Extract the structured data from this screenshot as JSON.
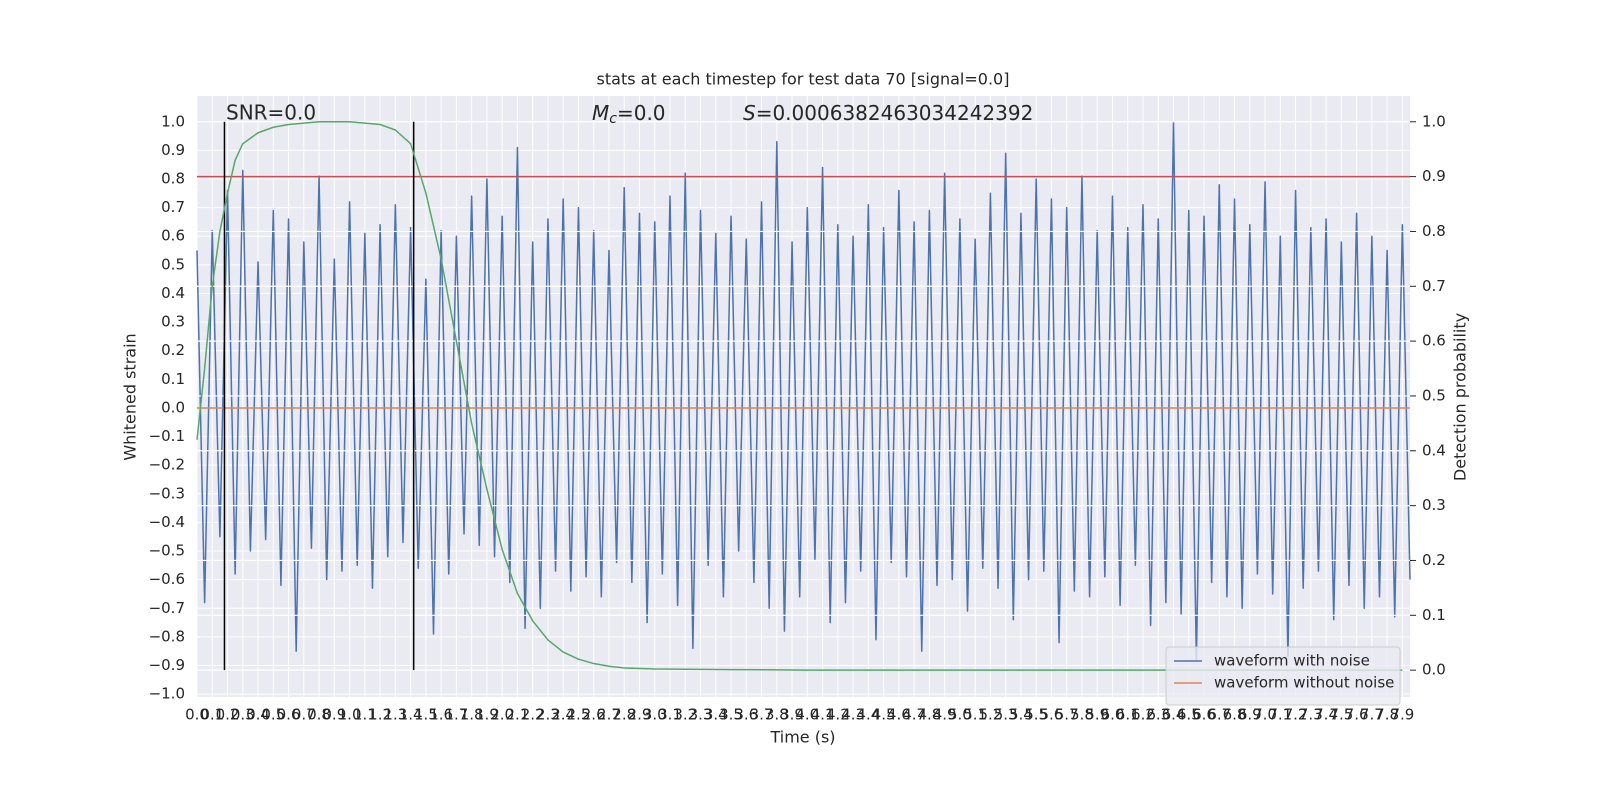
{
  "chart_data": {
    "type": "line",
    "title": "stats at each timestep for test data 70 [signal=0.0]",
    "xlabel": "Time (s)",
    "ylabel": "Whitened strain",
    "y2label": "Detection probability",
    "annotations": [
      {
        "text": "SNR=0.0"
      },
      {
        "symbol": "M",
        "subscript": "c",
        "text": "=0.0"
      },
      {
        "symbol": "S",
        "text": "=0.0006382463034242392"
      }
    ],
    "xlim": [
      0,
      7.95
    ],
    "ylim": [
      -1.01,
      1.09
    ],
    "y2lim": [
      -0.049,
      1.047
    ],
    "grid": true,
    "legend": "lower right",
    "xticks": [
      {
        "value": 0,
        "label": "0.0"
      },
      0.1,
      0.2,
      0.3,
      0.4,
      0.5,
      0.6,
      0.7,
      0.8,
      0.9,
      {
        "value": 1,
        "label": "1.0"
      },
      1.1,
      1.2,
      1.3,
      1.4,
      1.5,
      1.6,
      1.7,
      1.8,
      1.9,
      {
        "value": 2,
        "label": "2.0"
      },
      2.1,
      2.2,
      2.3,
      2.4,
      2.5,
      2.6,
      2.7,
      2.8,
      2.9,
      {
        "value": 3,
        "label": "3.0"
      },
      3.1,
      3.2,
      3.3,
      3.4,
      3.5,
      3.6,
      3.7,
      3.8,
      3.9,
      {
        "value": 4,
        "label": "4.0"
      },
      4.1,
      4.2,
      4.3,
      4.4,
      4.5,
      4.6,
      4.7,
      4.8,
      4.9,
      {
        "value": 5,
        "label": "5.0"
      },
      5.1,
      5.2,
      5.3,
      5.4,
      5.5,
      5.6,
      5.7,
      5.8,
      5.9,
      {
        "value": 6,
        "label": "6.0"
      },
      6.1,
      6.2,
      6.3,
      6.4,
      6.5,
      6.6,
      6.7,
      6.8,
      6.9,
      {
        "value": 7,
        "label": "7.0"
      },
      7.1,
      7.2,
      7.3,
      7.4,
      7.5,
      7.6,
      7.7,
      7.8,
      7.9
    ],
    "yticks": [
      {
        "value": -1,
        "label": "−1.0"
      },
      {
        "value": -0.9,
        "label": "−0.9"
      },
      {
        "value": -0.8,
        "label": "−0.8"
      },
      {
        "value": -0.7,
        "label": "−0.7"
      },
      {
        "value": -0.6,
        "label": "−0.6"
      },
      {
        "value": -0.5,
        "label": "−0.5"
      },
      {
        "value": -0.4,
        "label": "−0.4"
      },
      {
        "value": -0.3,
        "label": "−0.3"
      },
      {
        "value": -0.2,
        "label": "−0.2"
      },
      {
        "value": -0.1,
        "label": "−0.1"
      },
      {
        "value": 0,
        "label": "0.0"
      },
      0.1,
      0.2,
      0.3,
      0.4,
      0.5,
      0.6,
      0.7,
      0.8,
      0.9,
      {
        "value": 1,
        "label": "1.0"
      }
    ],
    "y2ticks": [
      {
        "value": 0,
        "label": "0.0"
      },
      0.1,
      0.2,
      0.3,
      0.4,
      0.5,
      0.6,
      0.7,
      0.8,
      0.9,
      {
        "value": 1,
        "label": "1.0"
      }
    ],
    "series": [
      {
        "name": "waveform with noise",
        "color": "#4c72b0",
        "x": [
          0.0,
          0.05,
          0.1,
          0.15,
          0.2,
          0.25,
          0.3,
          0.35,
          0.4,
          0.45,
          0.5,
          0.55,
          0.6,
          0.65,
          0.7,
          0.75,
          0.8,
          0.85,
          0.9,
          0.95,
          1.0,
          1.05,
          1.1,
          1.15,
          1.2,
          1.25,
          1.3,
          1.35,
          1.4,
          1.45,
          1.5,
          1.55,
          1.6,
          1.65,
          1.7,
          1.75,
          1.8,
          1.85,
          1.9,
          1.95,
          2.0,
          2.05,
          2.1,
          2.15,
          2.2,
          2.25,
          2.3,
          2.35,
          2.4,
          2.45,
          2.5,
          2.55,
          2.6,
          2.65,
          2.7,
          2.75,
          2.8,
          2.85,
          2.9,
          2.95,
          3.0,
          3.05,
          3.1,
          3.15,
          3.2,
          3.25,
          3.3,
          3.35,
          3.4,
          3.45,
          3.5,
          3.55,
          3.6,
          3.65,
          3.7,
          3.75,
          3.8,
          3.85,
          3.9,
          3.95,
          4.0,
          4.05,
          4.1,
          4.15,
          4.2,
          4.25,
          4.3,
          4.35,
          4.4,
          4.45,
          4.5,
          4.55,
          4.6,
          4.65,
          4.7,
          4.75,
          4.8,
          4.85,
          4.9,
          4.95,
          5.0,
          5.05,
          5.1,
          5.15,
          5.2,
          5.25,
          5.3,
          5.35,
          5.4,
          5.45,
          5.5,
          5.55,
          5.6,
          5.65,
          5.7,
          5.75,
          5.8,
          5.85,
          5.9,
          5.95,
          6.0,
          6.05,
          6.1,
          6.15,
          6.2,
          6.25,
          6.3,
          6.35,
          6.4,
          6.45,
          6.5,
          6.55,
          6.6,
          6.65,
          6.7,
          6.75,
          6.8,
          6.85,
          6.9,
          6.95,
          7.0,
          7.05,
          7.1,
          7.15,
          7.2,
          7.25,
          7.3,
          7.35,
          7.4,
          7.45,
          7.5,
          7.55,
          7.6,
          7.65,
          7.7,
          7.75,
          7.8,
          7.85,
          7.9,
          7.95
        ],
        "values": [
          0.55,
          -0.68,
          0.62,
          -0.45,
          0.76,
          -0.58,
          0.83,
          -0.5,
          0.51,
          -0.46,
          0.69,
          -0.62,
          0.66,
          -0.85,
          0.58,
          -0.49,
          0.81,
          -0.6,
          0.52,
          -0.57,
          0.72,
          -0.55,
          0.61,
          -0.63,
          0.64,
          -0.52,
          0.71,
          -0.47,
          0.63,
          -0.56,
          0.45,
          -0.79,
          0.62,
          -0.58,
          0.6,
          -0.44,
          0.74,
          -0.48,
          0.8,
          -0.52,
          0.67,
          -0.61,
          0.91,
          -0.77,
          0.58,
          -0.7,
          0.66,
          -0.57,
          0.73,
          -0.64,
          0.7,
          -0.59,
          0.62,
          -0.66,
          0.55,
          -0.54,
          0.77,
          -0.61,
          0.68,
          -0.75,
          0.65,
          -0.58,
          0.74,
          -0.69,
          0.82,
          -0.84,
          0.69,
          -0.55,
          0.61,
          -0.66,
          0.67,
          -0.5,
          0.59,
          -0.61,
          0.72,
          -0.7,
          0.93,
          -0.78,
          0.58,
          -0.66,
          0.7,
          -0.53,
          0.84,
          -0.75,
          0.64,
          -0.68,
          0.6,
          -0.57,
          0.71,
          -0.81,
          0.63,
          -0.54,
          0.76,
          -0.59,
          0.65,
          -0.85,
          0.69,
          -0.62,
          0.82,
          -0.6,
          0.66,
          -0.71,
          0.59,
          -0.56,
          0.75,
          -0.63,
          0.89,
          -0.74,
          0.68,
          -0.6,
          0.8,
          -0.57,
          0.73,
          -0.82,
          0.7,
          -0.64,
          0.81,
          -0.66,
          0.62,
          -0.59,
          0.74,
          -0.69,
          0.63,
          -0.55,
          0.71,
          -0.76,
          0.66,
          -0.68,
          1.0,
          -0.72,
          0.69,
          -0.88,
          0.67,
          -0.61,
          0.78,
          -0.66,
          0.73,
          -0.7,
          0.64,
          -0.58,
          0.79,
          -0.65,
          0.6,
          -0.87,
          0.76,
          -0.63,
          0.63,
          -0.57,
          0.66,
          -0.74,
          0.58,
          -0.62,
          0.68,
          -0.7,
          0.6,
          -0.66,
          0.55,
          -0.73,
          0.64,
          -0.6
        ]
      },
      {
        "name": "waveform without noise",
        "color": "#dd8452",
        "x": [
          0,
          7.95
        ],
        "values": [
          0.0,
          0.0
        ]
      },
      {
        "color": "#55a868",
        "axis": "y2",
        "x": [
          0,
          0.05,
          0.1,
          0.15,
          0.2,
          0.25,
          0.3,
          0.4,
          0.5,
          0.6,
          0.8,
          1.0,
          1.2,
          1.3,
          1.4,
          1.5,
          1.6,
          1.7,
          1.8,
          1.9,
          2.0,
          2.1,
          2.2,
          2.3,
          2.4,
          2.5,
          2.6,
          2.7,
          2.8,
          3.0,
          3.5,
          4.0,
          5.0,
          6.0,
          7.0,
          7.9
        ],
        "values": [
          0.42,
          0.55,
          0.7,
          0.8,
          0.87,
          0.93,
          0.96,
          0.98,
          0.99,
          0.995,
          1.0,
          1.0,
          0.995,
          0.985,
          0.96,
          0.87,
          0.75,
          0.6,
          0.45,
          0.33,
          0.22,
          0.14,
          0.09,
          0.055,
          0.033,
          0.02,
          0.012,
          0.007,
          0.004,
          0.002,
          0.001,
          0.0,
          0.0,
          0.0,
          0.0,
          0.0
        ]
      }
    ],
    "hlines": [
      {
        "value": 0.9,
        "axis": "y2",
        "color": "#c44e52"
      }
    ],
    "vlines": [
      {
        "value": 0.18,
        "ymin": 0,
        "ymax": 1,
        "axis": "y2",
        "color": "#000000"
      },
      {
        "value": 1.42,
        "ymin": 0,
        "ymax": 1,
        "axis": "y2",
        "color": "#000000"
      }
    ]
  }
}
